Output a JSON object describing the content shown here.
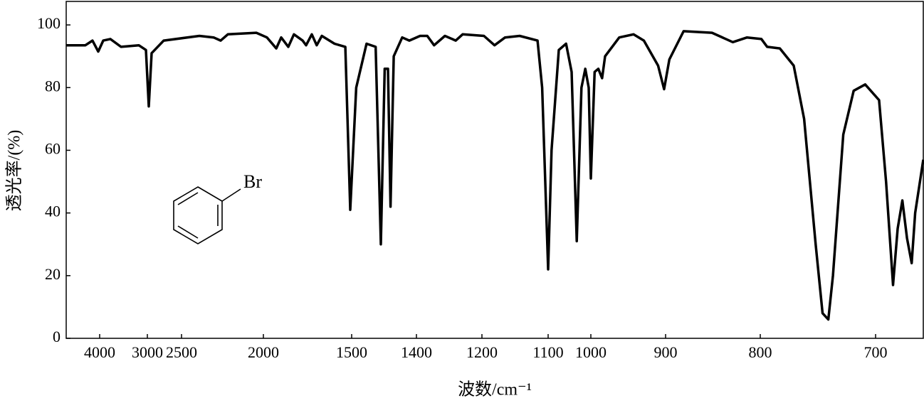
{
  "chart_data": {
    "type": "line",
    "ylabel": "透光率/(%)",
    "xlabel": "波数/cm⁻¹",
    "annotation": "Br",
    "xlim": [
      4700,
      659
    ],
    "ylim": [
      0,
      107.5
    ],
    "xticks": [
      4000,
      3000,
      2500,
      2000,
      1500,
      1400,
      1200,
      1100,
      1000,
      900,
      800,
      700
    ],
    "yticks": [
      0,
      20,
      40,
      60,
      80,
      100
    ],
    "series": [
      {
        "name": "bromobenzene",
        "color": "#000000",
        "x": [
          4700,
          4300,
          4150,
          4030,
          3925,
          3776,
          3552,
          3179,
          3030,
          2979,
          2938,
          2760,
          2391,
          2304,
          2261,
          2217,
          2043,
          1980,
          1927,
          1899,
          1859,
          1827,
          1778,
          1758,
          1726,
          1698,
          1669,
          1597,
          1536,
          1508,
          1493,
          1477,
          1463,
          1455,
          1449,
          1444,
          1440,
          1435,
          1422,
          1411,
          1389,
          1367,
          1346,
          1313,
          1280,
          1259,
          1197,
          1181,
          1165,
          1143,
          1116,
          1109,
          1100,
          1092,
          1075,
          1058,
          1045,
          1033,
          1022,
          1013,
          1005,
          1000,
          995,
          990,
          985,
          981,
          962,
          943,
          929,
          910,
          902,
          896,
          881,
          851,
          829,
          814,
          799,
          794,
          783,
          771,
          762,
          752,
          746,
          741,
          737,
          728,
          719,
          709,
          697,
          691,
          685,
          681,
          677,
          673,
          669,
          666,
          659
        ],
        "values": [
          93.5,
          93.5,
          95,
          91.5,
          95,
          95.5,
          93,
          93.5,
          92,
          74,
          91,
          95,
          96.5,
          96,
          95,
          97,
          97.5,
          96,
          92.5,
          96,
          93,
          97,
          95,
          93.5,
          97,
          93.5,
          96.5,
          94,
          93,
          41,
          80,
          94,
          93,
          30,
          86,
          86,
          42,
          90,
          96,
          95,
          96.5,
          96.5,
          93.5,
          96.5,
          95,
          97,
          96.5,
          93.5,
          96,
          96.5,
          95,
          80,
          22,
          60,
          92,
          94,
          85,
          31,
          80,
          86,
          80,
          51,
          85,
          86,
          83,
          90,
          96,
          97,
          95,
          87,
          79.5,
          89,
          98,
          97.5,
          94.5,
          96,
          95.5,
          93,
          92.5,
          87,
          70,
          30,
          8,
          6,
          20,
          65,
          79,
          81,
          76,
          50,
          17,
          35,
          44,
          32,
          24,
          40,
          57
        ]
      }
    ]
  }
}
